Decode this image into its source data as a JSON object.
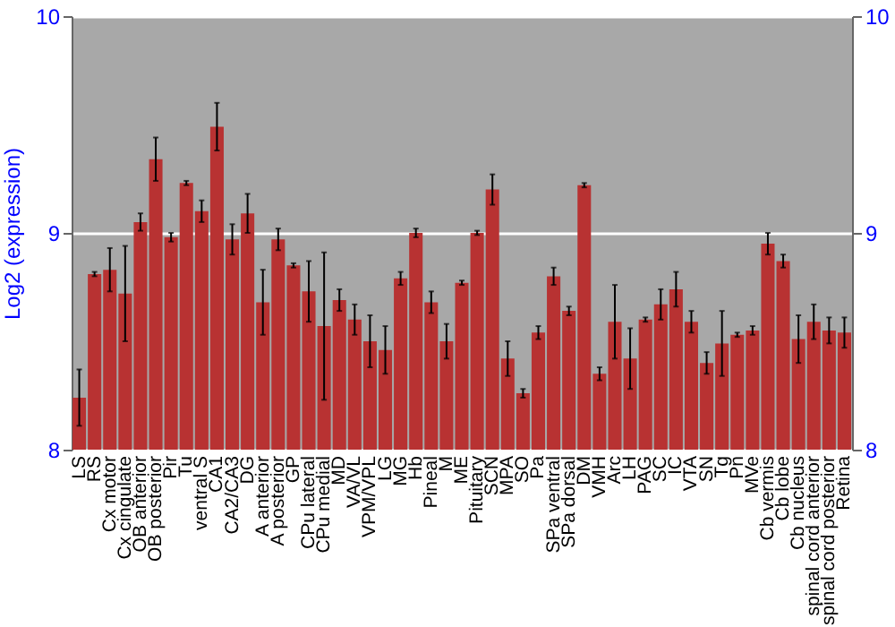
{
  "chart_data": {
    "type": "bar",
    "ylabel": "Log2 (expression)",
    "categories": [
      "LS",
      "RS",
      "Cx motor",
      "Cx cingulate",
      "OB anterior",
      "OB posterior",
      "Pir",
      "Tu",
      "ventral S",
      "CA1",
      "CA2/CA3",
      "DG",
      "A anterior",
      "A posterior",
      "GP",
      "CPu lateral",
      "CPu medial",
      "MD",
      "VA/VL",
      "VPM/VPL",
      "LG",
      "MG",
      "Hb",
      "Pineal",
      "M",
      "ME",
      "Pituitary",
      "SCN",
      "MPA",
      "SO",
      "Pa",
      "SPa ventral",
      "SPa dorsal",
      "DM",
      "VMH",
      "Arc",
      "LH",
      "PAG",
      "SC",
      "IC",
      "VTA",
      "SN",
      "Tg",
      "Pn",
      "MVe",
      "Cb vermis",
      "Cb lobe",
      "Cb nucleus",
      "spinal cord anterior",
      "spinal cord posterior",
      "Retina"
    ],
    "values": [
      8.24,
      8.81,
      8.83,
      8.72,
      9.05,
      9.34,
      8.98,
      9.23,
      9.1,
      9.49,
      8.97,
      9.09,
      8.68,
      8.97,
      8.85,
      8.73,
      8.57,
      8.69,
      8.6,
      8.5,
      8.46,
      8.79,
      9.0,
      8.68,
      8.5,
      8.77,
      9.0,
      9.2,
      8.42,
      8.26,
      8.54,
      8.8,
      8.64,
      9.22,
      8.35,
      8.59,
      8.42,
      8.6,
      8.67,
      8.74,
      8.59,
      8.4,
      8.49,
      8.53,
      8.55,
      8.95,
      8.87,
      8.51,
      8.59,
      8.55,
      8.54
    ],
    "errors": [
      0.13,
      0.01,
      0.1,
      0.22,
      0.04,
      0.1,
      0.02,
      0.01,
      0.05,
      0.11,
      0.07,
      0.09,
      0.15,
      0.05,
      0.01,
      0.14,
      0.34,
      0.05,
      0.07,
      0.12,
      0.11,
      0.03,
      0.02,
      0.05,
      0.08,
      0.01,
      0.01,
      0.07,
      0.08,
      0.02,
      0.03,
      0.04,
      0.02,
      0.01,
      0.03,
      0.17,
      0.14,
      0.01,
      0.07,
      0.08,
      0.05,
      0.05,
      0.15,
      0.01,
      0.02,
      0.05,
      0.03,
      0.11,
      0.08,
      0.06,
      0.07
    ],
    "color": "#b83232",
    "ylim": [
      8,
      10
    ],
    "yticks": [
      8,
      9,
      10
    ],
    "y2lim": [
      8,
      10
    ],
    "y2ticks": [
      8,
      9,
      10
    ],
    "grid": "y"
  }
}
